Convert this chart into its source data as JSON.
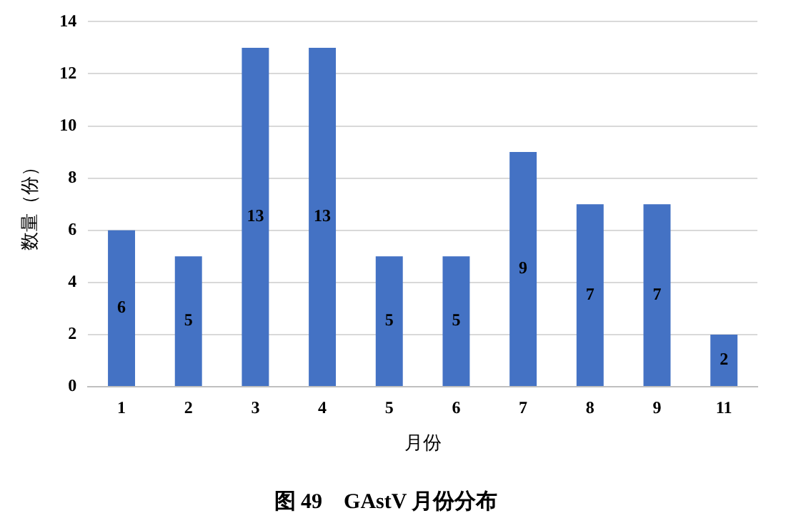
{
  "chart_data": {
    "type": "bar",
    "title": "图 49　GAstV 月份分布",
    "xlabel": "月份",
    "ylabel": "数量（份）",
    "categories": [
      "1",
      "2",
      "3",
      "4",
      "5",
      "6",
      "7",
      "8",
      "9",
      "11"
    ],
    "values": [
      6,
      5,
      13,
      13,
      5,
      5,
      9,
      7,
      7,
      2
    ],
    "color": "#4472c4",
    "ylim": [
      0,
      14
    ],
    "yticks": [
      0,
      2,
      4,
      6,
      8,
      10,
      12,
      14
    ],
    "grid": "y",
    "legend": false,
    "data_labels": true
  }
}
